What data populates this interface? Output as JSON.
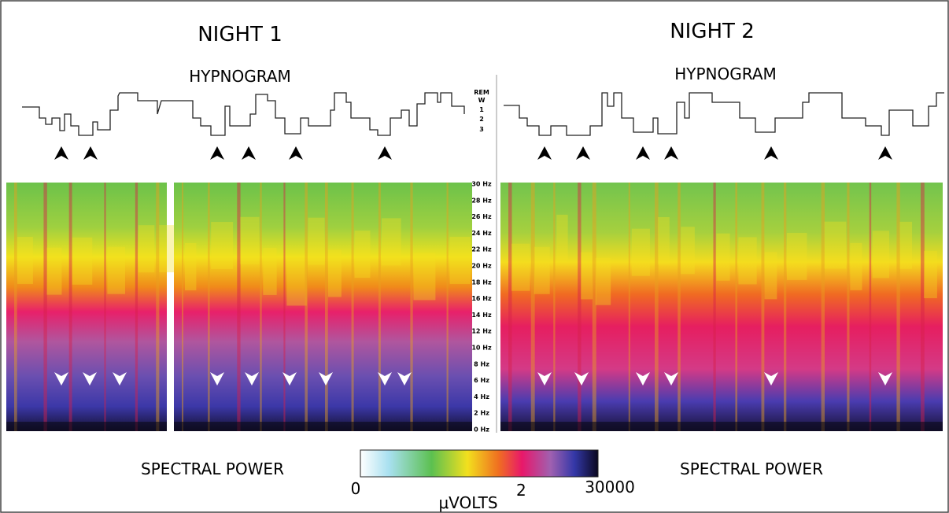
{
  "night1": {
    "title": "NIGHT 1",
    "hypnogram_title": "HYPNOGRAM",
    "spectral_title": "SPECTRAL POWER"
  },
  "night2": {
    "title": "NIGHT 2",
    "hypnogram_title": "HYPNOGRAM",
    "spectral_title": "SPECTRAL POWER"
  },
  "hypnogram_stages": [
    "REM",
    "W",
    "1",
    "2",
    "3"
  ],
  "frequency_labels": [
    "30 Hz",
    "28 Hz",
    "26 Hz",
    "24 Hz",
    "22 Hz",
    "20 Hz",
    "18 Hz",
    "16 Hz",
    "14 Hz",
    "12 Hz",
    "10 Hz",
    "8 Hz",
    "6 Hz",
    "4 Hz",
    "2 Hz",
    "0 Hz"
  ],
  "colorbar": {
    "min_label": "0",
    "max_label": "30000",
    "unit": "μVOLTS",
    "unit_exponent": "2"
  }
}
